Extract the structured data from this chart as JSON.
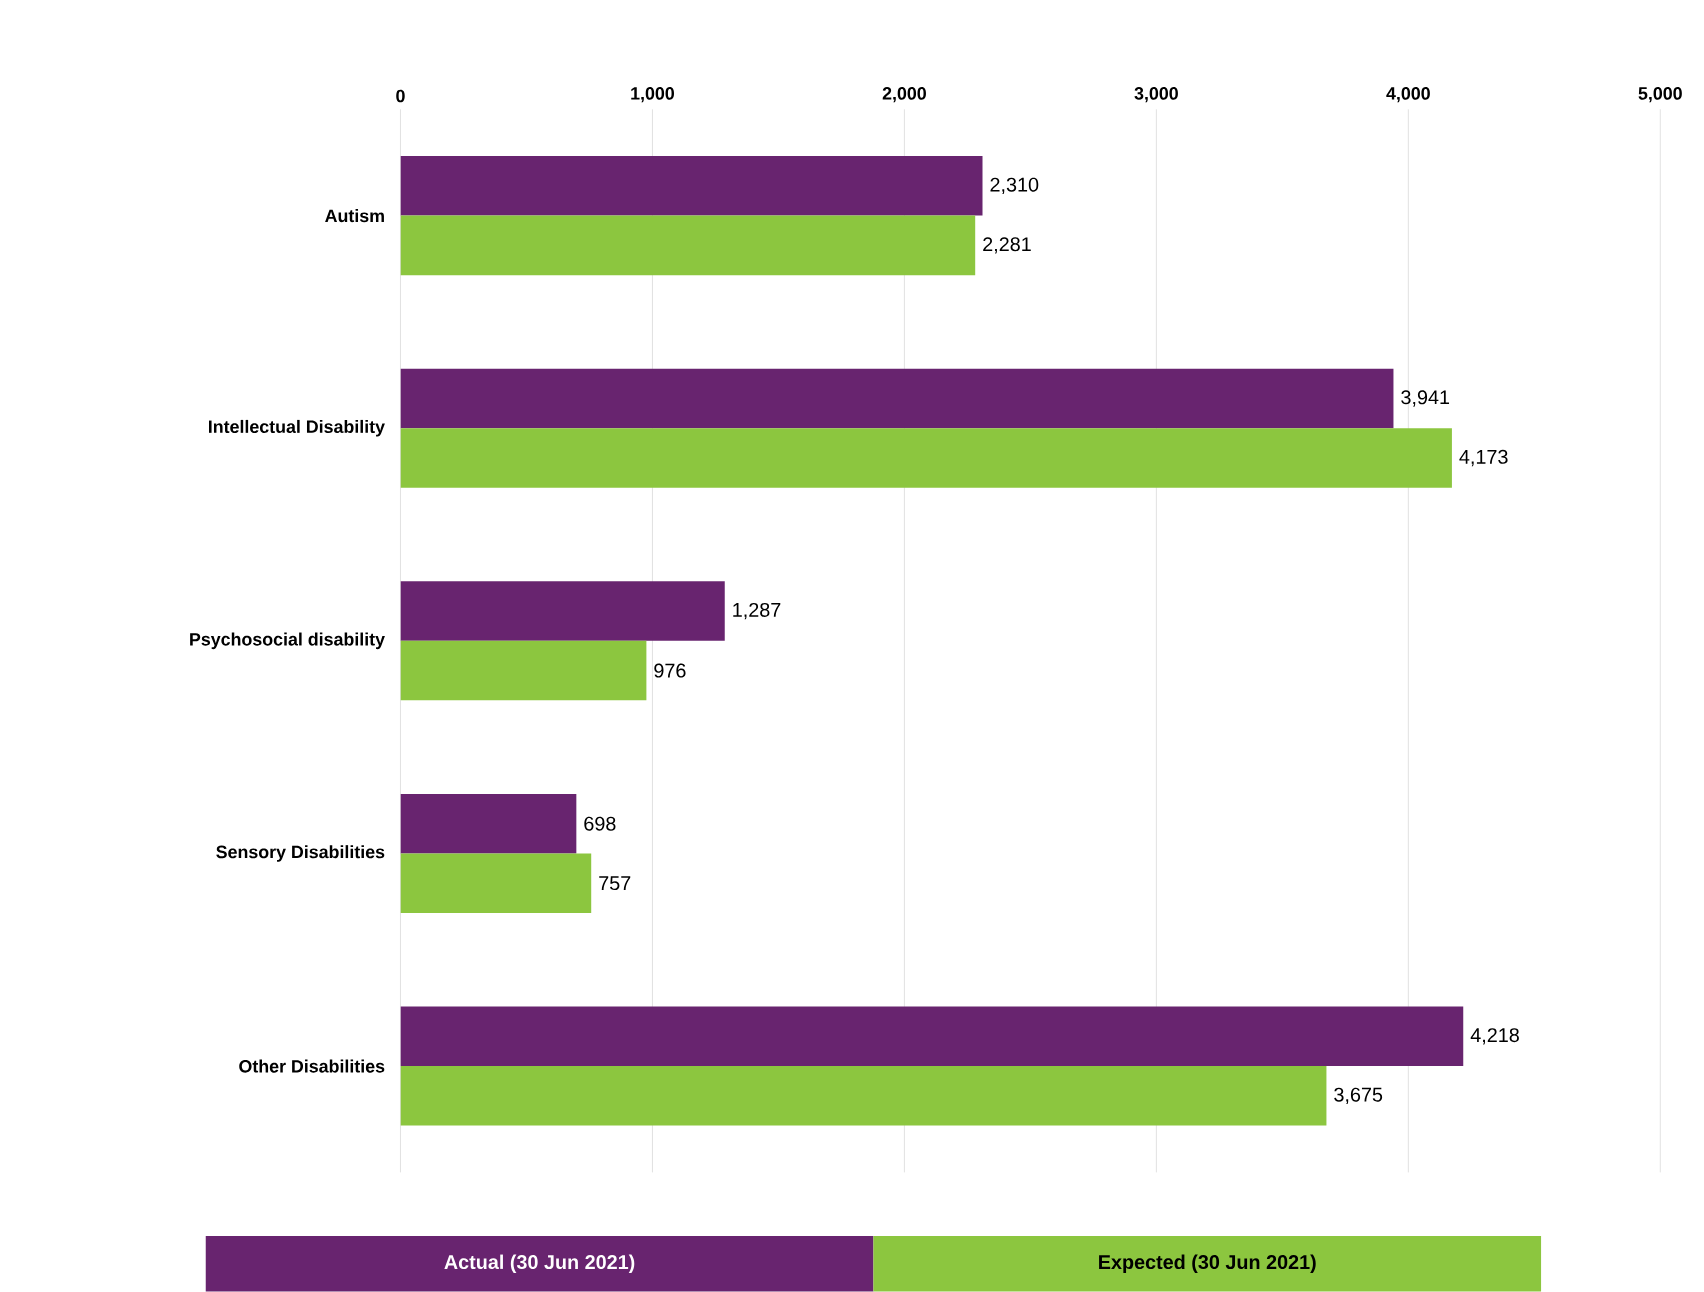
{
  "chart_data": {
    "type": "bar",
    "orientation": "horizontal",
    "categories": [
      "Autism",
      "Intellectual Disability",
      "Psychosocial disability",
      "Sensory Disabilities",
      "Other Disabilities"
    ],
    "series": [
      {
        "name": "Actual (30 Jun 2021)",
        "color": "#68246f",
        "values": [
          2310,
          3941,
          1287,
          698,
          4218
        ],
        "value_labels": [
          "2,310",
          "3,941",
          "1,287",
          "698",
          "4,218"
        ]
      },
      {
        "name": "Expected (30 Jun 2021)",
        "color": "#8cc63f",
        "values": [
          2281,
          4173,
          976,
          757,
          3675
        ],
        "value_labels": [
          "2,281",
          "4,173",
          "976",
          "757",
          "3,675"
        ]
      }
    ],
    "xlim": [
      0,
      5000
    ],
    "xticks": [
      0,
      {
        "value": 1000,
        "label": "1,000"
      },
      {
        "value": 2000,
        "label": "2,000"
      },
      {
        "value": 3000,
        "label": "3,000"
      },
      {
        "value": 4000,
        "label": "4,000"
      },
      {
        "value": 5000,
        "label": "5,000"
      }
    ],
    "grid": "x",
    "legend": "bottom"
  }
}
